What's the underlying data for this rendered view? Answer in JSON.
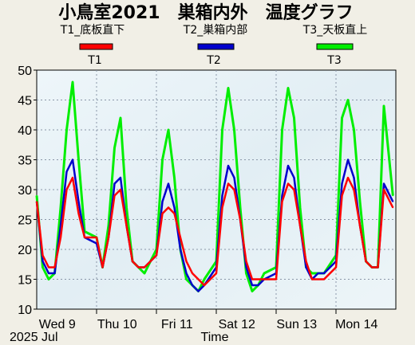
{
  "chart_data": {
    "type": "line",
    "title": "小鳥室2021　巣箱内外　温度グラフ",
    "series_descriptions": [
      "T1_底板直下",
      "T2_巣箱内部",
      "T3_天板直上"
    ],
    "series": [
      {
        "name": "T1",
        "color": "#ff0000",
        "x": [
          0,
          0.1,
          0.2,
          0.3,
          0.4,
          0.5,
          0.6,
          0.7,
          0.8,
          1.0,
          1.1,
          1.2,
          1.3,
          1.4,
          1.5,
          1.6,
          1.7,
          1.8,
          2.0,
          2.1,
          2.2,
          2.3,
          2.4,
          2.5,
          2.6,
          2.7,
          2.8,
          3.0,
          3.1,
          3.2,
          3.3,
          3.4,
          3.5,
          3.6,
          3.7,
          3.8,
          4.0,
          4.1,
          4.2,
          4.3,
          4.4,
          4.5,
          4.6,
          4.7,
          4.8,
          5.0,
          5.1,
          5.2,
          5.3,
          5.4,
          5.5,
          5.6,
          5.7,
          5.8,
          5.95
        ],
        "y": [
          28,
          19,
          17,
          17,
          22,
          30,
          32,
          26,
          22,
          22,
          17,
          22,
          29,
          30,
          24,
          18,
          17,
          17,
          19,
          26,
          27,
          26,
          22,
          18,
          16,
          15,
          14,
          16,
          27,
          31,
          30,
          25,
          18,
          15,
          15,
          15,
          15,
          28,
          31,
          30,
          24,
          18,
          15,
          15,
          15,
          17,
          29,
          32,
          30,
          24,
          18,
          17,
          17,
          30,
          27
        ]
      },
      {
        "name": "T2",
        "color": "#0000cc",
        "x": [
          0,
          0.1,
          0.2,
          0.3,
          0.4,
          0.5,
          0.6,
          0.7,
          0.8,
          1.0,
          1.1,
          1.2,
          1.3,
          1.4,
          1.5,
          1.6,
          1.7,
          1.8,
          2.0,
          2.1,
          2.2,
          2.3,
          2.4,
          2.5,
          2.6,
          2.7,
          2.8,
          3.0,
          3.1,
          3.2,
          3.3,
          3.4,
          3.5,
          3.6,
          3.7,
          3.8,
          4.0,
          4.1,
          4.2,
          4.3,
          4.4,
          4.5,
          4.6,
          4.7,
          4.8,
          5.0,
          5.1,
          5.2,
          5.3,
          5.4,
          5.5,
          5.6,
          5.7,
          5.8,
          5.95
        ],
        "y": [
          28,
          18,
          16,
          16,
          24,
          33,
          35,
          28,
          22,
          21,
          17,
          22,
          31,
          32,
          24,
          18,
          17,
          17,
          19,
          28,
          31,
          27,
          20,
          16,
          14,
          13,
          14,
          17,
          29,
          34,
          32,
          25,
          17,
          14,
          14,
          15,
          16,
          29,
          34,
          32,
          24,
          17,
          15,
          16,
          16,
          18,
          31,
          35,
          32,
          24,
          18,
          17,
          17,
          31,
          28
        ]
      },
      {
        "name": "T3",
        "color": "#00ee00",
        "x": [
          0,
          0.1,
          0.2,
          0.3,
          0.4,
          0.5,
          0.6,
          0.7,
          0.8,
          1.0,
          1.1,
          1.2,
          1.3,
          1.4,
          1.5,
          1.6,
          1.7,
          1.8,
          2.0,
          2.1,
          2.2,
          2.3,
          2.4,
          2.5,
          2.6,
          2.7,
          2.8,
          3.0,
          3.1,
          3.2,
          3.3,
          3.4,
          3.5,
          3.6,
          3.7,
          3.8,
          4.0,
          4.1,
          4.2,
          4.3,
          4.4,
          4.5,
          4.6,
          4.7,
          4.8,
          5.0,
          5.1,
          5.2,
          5.3,
          5.4,
          5.5,
          5.6,
          5.7,
          5.8,
          5.95
        ],
        "y": [
          29,
          17,
          15,
          16,
          27,
          40,
          48,
          35,
          23,
          22,
          17,
          24,
          37,
          42,
          27,
          18,
          17,
          16,
          20,
          35,
          40,
          32,
          20,
          15,
          14,
          13,
          15,
          18,
          40,
          47,
          40,
          27,
          16,
          13,
          14,
          16,
          17,
          40,
          47,
          42,
          27,
          17,
          16,
          16,
          16,
          19,
          42,
          45,
          40,
          28,
          18,
          17,
          17,
          44,
          29
        ]
      }
    ],
    "xlabel": "Time",
    "x_ticks": [
      {
        "x": 0.17,
        "label": "Wed 9"
      },
      {
        "x": 1.17,
        "label": "Thu 10"
      },
      {
        "x": 2.17,
        "label": "Fri 11"
      },
      {
        "x": 3.17,
        "label": "Sat 12"
      },
      {
        "x": 4.17,
        "label": "Sun 13"
      },
      {
        "x": 5.17,
        "label": "Mon 14"
      }
    ],
    "x_caption": "2025 Jul",
    "xlim": [
      0,
      6
    ],
    "ylim": [
      10,
      50
    ],
    "y_ticks": [
      10,
      15,
      20,
      25,
      30,
      35,
      40,
      45,
      50
    ],
    "grid": true,
    "legend_placement": "top"
  }
}
